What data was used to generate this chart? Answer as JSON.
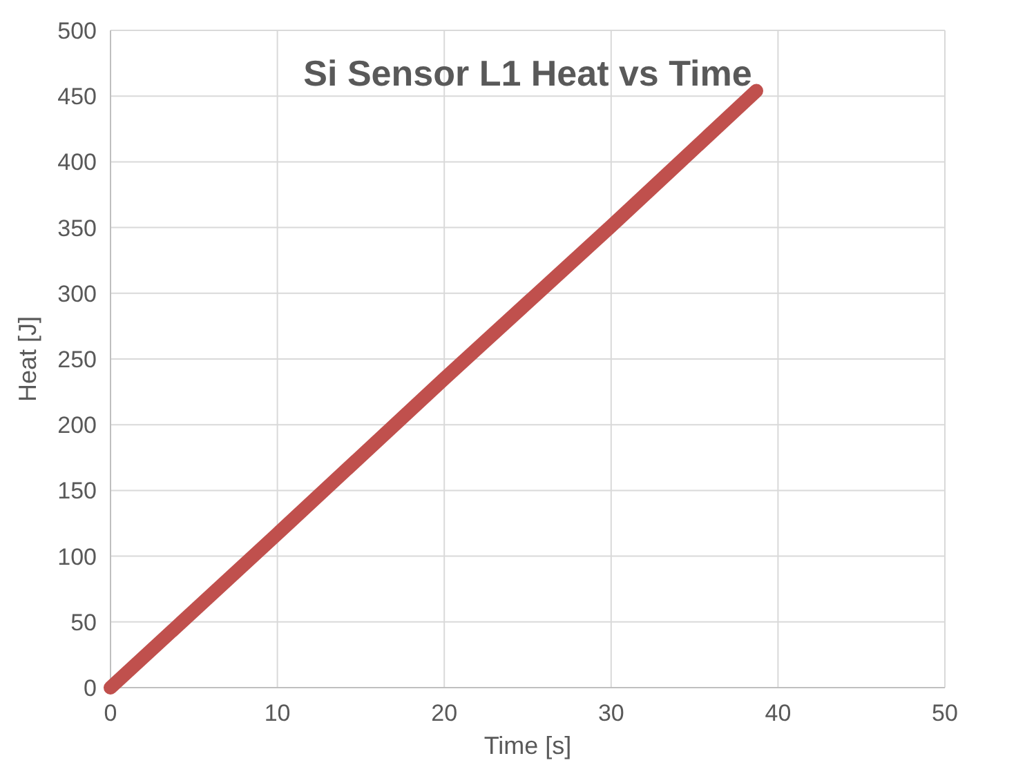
{
  "chart_data": {
    "type": "line",
    "title": "Si Sensor L1 Heat vs Time",
    "xlabel": "Time [s]",
    "ylabel": "Heat [J]",
    "x": [
      0,
      10,
      20,
      30,
      38.7
    ],
    "series": [
      {
        "color": "#c0504d",
        "values": [
          0,
          117,
          235,
          351,
          454
        ]
      }
    ],
    "xlim": [
      0,
      50
    ],
    "xticks": [
      0,
      10,
      20,
      30,
      40,
      50
    ],
    "ylim": [
      0,
      500
    ],
    "yticks": [
      0,
      50,
      100,
      150,
      200,
      250,
      300,
      350,
      400,
      450,
      500
    ],
    "grid": true,
    "marker": "none",
    "line_style": "solid"
  }
}
